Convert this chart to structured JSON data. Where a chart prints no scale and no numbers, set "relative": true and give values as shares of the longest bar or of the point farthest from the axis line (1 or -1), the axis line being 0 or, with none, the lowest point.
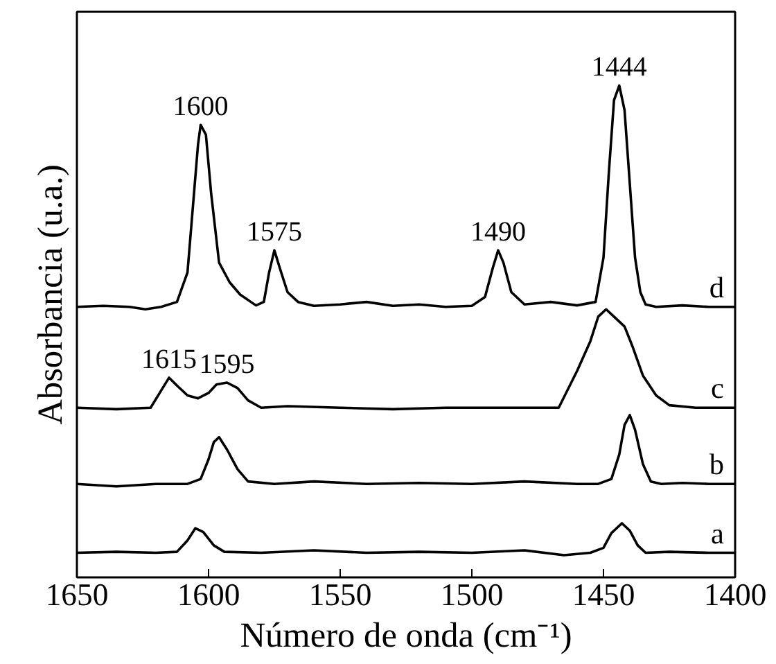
{
  "chart_data": {
    "type": "line",
    "relative": true,
    "xlabel": "Número de onda (cm⁻¹)",
    "ylabel": "Absorbancia (u.a.)",
    "xlim": [
      1650,
      1400
    ],
    "xticks": [
      1650,
      1600,
      1550,
      1500,
      1450,
      1400
    ],
    "tick_labels": "x",
    "grid": false,
    "legend": false,
    "marker": "none",
    "line_style": "solid",
    "series": [
      {
        "name": "a",
        "color": "#000000",
        "x": [
          1650,
          1635,
          1620,
          1612,
          1608,
          1605,
          1602,
          1598,
          1594,
          1580,
          1560,
          1540,
          1520,
          1500,
          1480,
          1465,
          1455,
          1450,
          1447,
          1443,
          1440,
          1437,
          1434,
          1425,
          1410,
          1400
        ],
        "values": [
          0.05,
          0.052,
          0.05,
          0.052,
          0.075,
          0.1,
          0.092,
          0.065,
          0.052,
          0.05,
          0.055,
          0.05,
          0.052,
          0.05,
          0.055,
          0.045,
          0.05,
          0.06,
          0.09,
          0.11,
          0.095,
          0.065,
          0.05,
          0.052,
          0.05,
          0.05
        ]
      },
      {
        "name": "b",
        "color": "#000000",
        "x": [
          1650,
          1635,
          1620,
          1608,
          1603,
          1600,
          1598,
          1596,
          1593,
          1589,
          1585,
          1575,
          1560,
          1540,
          1520,
          1500,
          1480,
          1460,
          1452,
          1447,
          1444,
          1442,
          1440,
          1438,
          1435,
          1432,
          1428,
          1420,
          1410,
          1400
        ],
        "values": [
          0.19,
          0.185,
          0.19,
          0.19,
          0.2,
          0.24,
          0.275,
          0.285,
          0.26,
          0.22,
          0.195,
          0.19,
          0.195,
          0.19,
          0.192,
          0.19,
          0.195,
          0.19,
          0.19,
          0.2,
          0.25,
          0.31,
          0.33,
          0.3,
          0.23,
          0.195,
          0.19,
          0.192,
          0.19,
          0.19
        ]
      },
      {
        "name": "c",
        "color": "#000000",
        "x": [
          1650,
          1635,
          1622,
          1618,
          1615,
          1612,
          1608,
          1604,
          1600,
          1597,
          1593,
          1589,
          1585,
          1580,
          1570,
          1550,
          1530,
          1510,
          1490,
          1475,
          1467,
          1460,
          1455,
          1452,
          1449,
          1446,
          1442,
          1439,
          1435,
          1430,
          1425,
          1415,
          1400
        ],
        "values": [
          0.345,
          0.342,
          0.345,
          0.38,
          0.406,
          0.39,
          0.37,
          0.364,
          0.375,
          0.392,
          0.396,
          0.385,
          0.36,
          0.345,
          0.348,
          0.345,
          0.342,
          0.345,
          0.345,
          0.345,
          0.345,
          0.42,
          0.48,
          0.53,
          0.545,
          0.53,
          0.51,
          0.47,
          0.41,
          0.37,
          0.35,
          0.345,
          0.345
        ]
      },
      {
        "name": "d",
        "color": "#000000",
        "x": [
          1650,
          1640,
          1630,
          1624,
          1618,
          1612,
          1608,
          1606,
          1604,
          1603,
          1601,
          1599,
          1596,
          1592,
          1588,
          1582,
          1579,
          1577,
          1575,
          1573,
          1570,
          1566,
          1560,
          1550,
          1540,
          1530,
          1520,
          1510,
          1500,
          1495,
          1492,
          1490,
          1488,
          1485,
          1480,
          1470,
          1460,
          1453,
          1450,
          1448,
          1446,
          1444,
          1442,
          1440,
          1438,
          1436,
          1434,
          1430,
          1420,
          1410,
          1400
        ],
        "values": [
          0.55,
          0.552,
          0.55,
          0.545,
          0.55,
          0.56,
          0.62,
          0.75,
          0.88,
          0.92,
          0.9,
          0.78,
          0.64,
          0.6,
          0.575,
          0.553,
          0.56,
          0.62,
          0.665,
          0.63,
          0.58,
          0.56,
          0.552,
          0.555,
          0.56,
          0.552,
          0.555,
          0.55,
          0.552,
          0.57,
          0.63,
          0.665,
          0.64,
          0.58,
          0.555,
          0.56,
          0.553,
          0.56,
          0.65,
          0.82,
          0.97,
          1.0,
          0.95,
          0.8,
          0.65,
          0.58,
          0.555,
          0.55,
          0.553,
          0.55,
          0.55
        ]
      }
    ],
    "annotations": [
      {
        "text": "1600",
        "x": 1603,
        "y": 0.92
      },
      {
        "text": "1575",
        "x": 1575,
        "y": 0.665
      },
      {
        "text": "1490",
        "x": 1490,
        "y": 0.665
      },
      {
        "text": "1444",
        "x": 1444,
        "y": 1.0
      },
      {
        "text": "1615",
        "x": 1615,
        "y": 0.406
      },
      {
        "text": "1595",
        "x": 1593,
        "y": 0.396
      }
    ]
  }
}
